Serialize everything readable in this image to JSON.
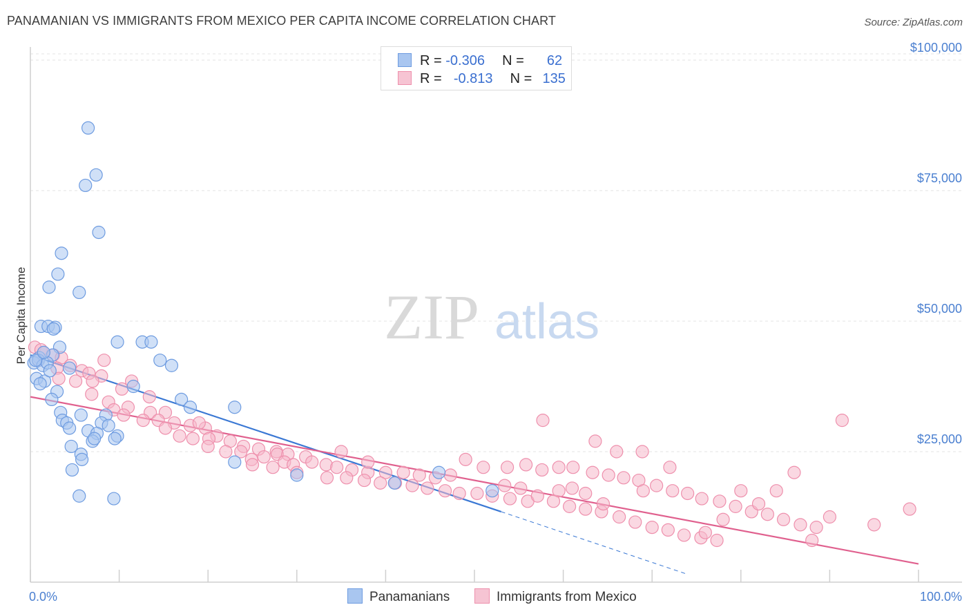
{
  "title": "PANAMANIAN VS IMMIGRANTS FROM MEXICO PER CAPITA INCOME CORRELATION CHART",
  "source": "Source: ZipAtlas.com",
  "watermark": {
    "zip": "ZIP",
    "atlas": "atlas"
  },
  "legend_top": {
    "rows": [
      {
        "r_label": "R =",
        "r_value": "-0.306",
        "n_label": "N =",
        "n_value": "62"
      },
      {
        "r_label": "R =",
        "r_value": "-0.813",
        "n_label": "N =",
        "n_value": "135"
      }
    ]
  },
  "legend_bottom": {
    "series1": "Panamanians",
    "series2": "Immigrants from Mexico"
  },
  "colors": {
    "blue_fill": "#a9c6f0",
    "blue_stroke": "#6d9be0",
    "blue_line": "#3a78d4",
    "pink_fill": "#f6b8ca",
    "pink_stroke": "#ee8fac",
    "pink_line": "#e0608e",
    "tick_text": "#4a7fd0"
  },
  "chart_data": {
    "type": "scatter",
    "title": "PANAMANIAN VS IMMIGRANTS FROM MEXICO PER CAPITA INCOME CORRELATION CHART",
    "xlabel": "",
    "ylabel": "Per Capita Income",
    "xlim": [
      0,
      100
    ],
    "ylim": [
      0,
      105000
    ],
    "x_tick_labels": [
      "0.0%",
      "100.0%"
    ],
    "y_ticks": [
      25000,
      50000,
      75000,
      100000
    ],
    "y_tick_labels": [
      "$25,000",
      "$50,000",
      "$75,000",
      "$100,000"
    ],
    "grid": true,
    "series": [
      {
        "name": "Panamanians",
        "R": -0.306,
        "N": 62,
        "trend": {
          "x": [
            0,
            53
          ],
          "y": [
            43500,
            13500
          ],
          "dashed_extension": {
            "x": [
              53,
              74
            ],
            "y": [
              13500,
              1500
            ]
          }
        },
        "points": [
          [
            6.5,
            87000
          ],
          [
            7.4,
            78000
          ],
          [
            6.2,
            76000
          ],
          [
            7.7,
            67000
          ],
          [
            3.5,
            63000
          ],
          [
            3.1,
            59000
          ],
          [
            2.1,
            56500
          ],
          [
            5.5,
            55500
          ],
          [
            1.2,
            49000
          ],
          [
            2.0,
            49000
          ],
          [
            2.8,
            48800
          ],
          [
            2.6,
            48500
          ],
          [
            9.8,
            46000
          ],
          [
            12.6,
            46000
          ],
          [
            13.6,
            46000
          ],
          [
            3.3,
            45000
          ],
          [
            1.0,
            43000
          ],
          [
            2.5,
            43500
          ],
          [
            0.4,
            42000
          ],
          [
            0.9,
            42500
          ],
          [
            1.4,
            41500
          ],
          [
            14.6,
            42500
          ],
          [
            15.9,
            41500
          ],
          [
            4.4,
            41000
          ],
          [
            0.7,
            39000
          ],
          [
            1.6,
            38500
          ],
          [
            1.1,
            38000
          ],
          [
            11.6,
            37500
          ],
          [
            3.0,
            36500
          ],
          [
            17.0,
            35000
          ],
          [
            2.4,
            35000
          ],
          [
            18.0,
            33500
          ],
          [
            23.0,
            33500
          ],
          [
            3.4,
            32500
          ],
          [
            5.7,
            32000
          ],
          [
            8.5,
            32000
          ],
          [
            3.6,
            31000
          ],
          [
            8.0,
            30500
          ],
          [
            4.1,
            30500
          ],
          [
            8.8,
            30000
          ],
          [
            4.4,
            29500
          ],
          [
            6.5,
            29000
          ],
          [
            7.5,
            28500
          ],
          [
            9.8,
            28000
          ],
          [
            7.0,
            27000
          ],
          [
            7.2,
            27500
          ],
          [
            9.5,
            27500
          ],
          [
            4.6,
            26000
          ],
          [
            5.7,
            24500
          ],
          [
            5.8,
            23500
          ],
          [
            23.0,
            23000
          ],
          [
            4.7,
            21500
          ],
          [
            30.0,
            20500
          ],
          [
            5.5,
            16500
          ],
          [
            9.4,
            16000
          ],
          [
            41.0,
            19000
          ],
          [
            46.0,
            21000
          ],
          [
            52.0,
            17500
          ],
          [
            1.9,
            42000
          ],
          [
            0.6,
            42500
          ],
          [
            1.5,
            44000
          ],
          [
            2.2,
            40500
          ]
        ]
      },
      {
        "name": "Immigrants from Mexico",
        "R": -0.813,
        "N": 135,
        "trend": {
          "x": [
            0,
            100
          ],
          "y": [
            35500,
            3500
          ]
        },
        "points": [
          [
            0.5,
            45000
          ],
          [
            1.2,
            44500
          ],
          [
            1.5,
            44000
          ],
          [
            2.6,
            43500
          ],
          [
            3.5,
            43000
          ],
          [
            0.9,
            42500
          ],
          [
            8.3,
            42500
          ],
          [
            4.5,
            41500
          ],
          [
            5.8,
            40500
          ],
          [
            3.0,
            41000
          ],
          [
            6.6,
            40000
          ],
          [
            8.0,
            39500
          ],
          [
            3.2,
            39000
          ],
          [
            5.1,
            38500
          ],
          [
            7.0,
            38500
          ],
          [
            11.4,
            38500
          ],
          [
            10.3,
            37000
          ],
          [
            6.9,
            36000
          ],
          [
            13.4,
            35500
          ],
          [
            8.8,
            34500
          ],
          [
            11.0,
            33500
          ],
          [
            13.5,
            32500
          ],
          [
            15.2,
            32500
          ],
          [
            9.4,
            33000
          ],
          [
            10.5,
            32000
          ],
          [
            12.7,
            31000
          ],
          [
            14.4,
            31000
          ],
          [
            16.2,
            30500
          ],
          [
            18.0,
            30000
          ],
          [
            19.7,
            29500
          ],
          [
            15.2,
            29500
          ],
          [
            21.0,
            28000
          ],
          [
            16.8,
            28000
          ],
          [
            18.3,
            27500
          ],
          [
            20.1,
            27500
          ],
          [
            22.5,
            27000
          ],
          [
            24.0,
            26000
          ],
          [
            25.7,
            25500
          ],
          [
            27.7,
            25000
          ],
          [
            22.0,
            25000
          ],
          [
            23.7,
            25000
          ],
          [
            26.3,
            24000
          ],
          [
            27.8,
            24500
          ],
          [
            29.0,
            24500
          ],
          [
            31.0,
            24000
          ],
          [
            24.9,
            23500
          ],
          [
            28.6,
            23000
          ],
          [
            31.7,
            23000
          ],
          [
            33.3,
            22500
          ],
          [
            27.3,
            22000
          ],
          [
            29.6,
            22500
          ],
          [
            34.5,
            22000
          ],
          [
            36.2,
            21500
          ],
          [
            38.0,
            21000
          ],
          [
            40.0,
            21000
          ],
          [
            42.0,
            21000
          ],
          [
            43.8,
            20500
          ],
          [
            45.6,
            20000
          ],
          [
            47.3,
            20500
          ],
          [
            33.4,
            20000
          ],
          [
            35.6,
            20000
          ],
          [
            37.6,
            19500
          ],
          [
            39.4,
            19000
          ],
          [
            41.1,
            19000
          ],
          [
            43.0,
            18500
          ],
          [
            44.7,
            18000
          ],
          [
            46.7,
            17500
          ],
          [
            48.3,
            17000
          ],
          [
            50.3,
            17000
          ],
          [
            52.0,
            16500
          ],
          [
            54.0,
            16000
          ],
          [
            56.0,
            15500
          ],
          [
            57.6,
            21500
          ],
          [
            59.5,
            22000
          ],
          [
            61.1,
            22000
          ],
          [
            63.3,
            21000
          ],
          [
            65.1,
            20500
          ],
          [
            66.8,
            20000
          ],
          [
            68.5,
            19500
          ],
          [
            70.5,
            18500
          ],
          [
            72.3,
            17500
          ],
          [
            74.0,
            17000
          ],
          [
            75.6,
            16000
          ],
          [
            77.6,
            15500
          ],
          [
            79.4,
            14500
          ],
          [
            81.2,
            13500
          ],
          [
            83.0,
            13000
          ],
          [
            84.8,
            12000
          ],
          [
            86.7,
            11000
          ],
          [
            88.5,
            10500
          ],
          [
            91.4,
            31000
          ],
          [
            57.7,
            31000
          ],
          [
            63.6,
            27000
          ],
          [
            66.0,
            25000
          ],
          [
            68.9,
            25000
          ],
          [
            53.4,
            18500
          ],
          [
            55.2,
            18000
          ],
          [
            57.1,
            16500
          ],
          [
            58.9,
            15500
          ],
          [
            60.7,
            14500
          ],
          [
            62.5,
            14000
          ],
          [
            64.3,
            13500
          ],
          [
            66.3,
            12500
          ],
          [
            68.1,
            11500
          ],
          [
            70.0,
            10500
          ],
          [
            71.8,
            10000
          ],
          [
            73.6,
            9000
          ],
          [
            75.5,
            8500
          ],
          [
            77.3,
            8000
          ],
          [
            53.7,
            22000
          ],
          [
            55.8,
            22500
          ],
          [
            49.0,
            23500
          ],
          [
            51.0,
            22000
          ],
          [
            61.0,
            18000
          ],
          [
            62.5,
            17000
          ],
          [
            59.5,
            17500
          ],
          [
            64.5,
            15000
          ],
          [
            86.0,
            21000
          ],
          [
            84.0,
            17500
          ],
          [
            82.0,
            15000
          ],
          [
            80.0,
            17500
          ],
          [
            78.0,
            12000
          ],
          [
            76.0,
            9500
          ],
          [
            88.0,
            8000
          ],
          [
            90.0,
            12500
          ],
          [
            95.0,
            11000
          ],
          [
            99.0,
            14000
          ],
          [
            72.0,
            22000
          ],
          [
            69.0,
            17500
          ],
          [
            38.0,
            23000
          ],
          [
            35.0,
            25000
          ],
          [
            30.0,
            21000
          ],
          [
            25.0,
            22500
          ],
          [
            20.0,
            26000
          ],
          [
            19.0,
            30500
          ]
        ]
      }
    ]
  }
}
